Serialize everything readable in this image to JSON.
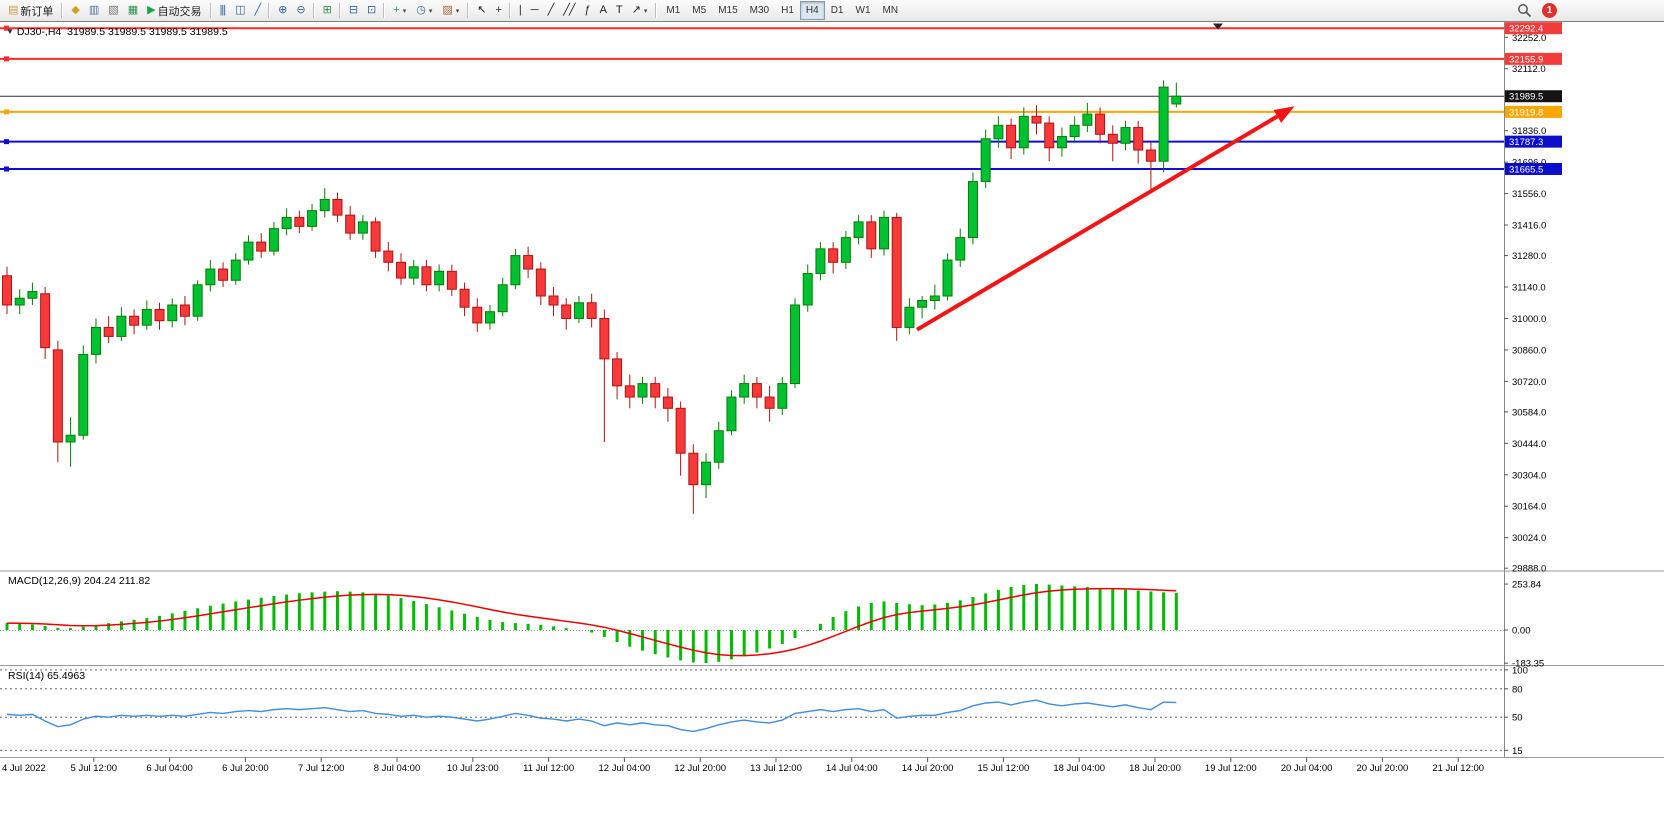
{
  "toolbar": {
    "notification_count": "1",
    "caret_glyph": "▾",
    "items": [
      {
        "name": "new-order-button",
        "label": "新订单",
        "icon": "new-order-icon",
        "glyph": "▤",
        "glyph_color": "#c89b3c"
      },
      {
        "sep": true
      },
      {
        "name": "market-watch-button",
        "icon": "market-watch-icon",
        "glyph": "◆",
        "glyph_color": "#d4a017"
      },
      {
        "name": "data-window-button",
        "icon": "data-window-icon",
        "glyph": "▥",
        "glyph_color": "#4a6fa5"
      },
      {
        "name": "navigator-button",
        "icon": "navigator-icon",
        "glyph": "▧",
        "glyph_color": "#767676"
      },
      {
        "name": "terminal-button",
        "icon": "terminal-icon",
        "glyph": "▦",
        "glyph_color": "#2f8f4e"
      },
      {
        "name": "auto-trading-button",
        "label": "自动交易",
        "icon": "auto-trading-play-icon",
        "glyph": "▶",
        "glyph_color": "#18a54a"
      },
      {
        "sep": true
      },
      {
        "name": "bar-chart-button",
        "icon": "bar-chart-icon",
        "glyph": "|||",
        "glyph_color": "#31639c"
      },
      {
        "name": "candlestick-chart-button",
        "icon": "candlestick-chart-icon",
        "glyph": "◫",
        "glyph_color": "#31639c"
      },
      {
        "name": "line-chart-button",
        "icon": "line-chart-icon",
        "glyph": "╱",
        "glyph_color": "#31639c"
      },
      {
        "sep": true
      },
      {
        "name": "zoom-in-button",
        "icon": "zoom-in-icon",
        "glyph": "⊕",
        "glyph_color": "#31639c"
      },
      {
        "name": "zoom-out-button",
        "icon": "zoom-out-icon",
        "glyph": "⊖",
        "glyph_color": "#31639c"
      },
      {
        "sep": true
      },
      {
        "name": "tile-windows-button",
        "icon": "tile-windows-icon",
        "glyph": "⊞",
        "glyph_color": "#2f8f4e"
      },
      {
        "sep": true
      },
      {
        "name": "arrange-windows-button",
        "icon": "arrange-windows-icon",
        "glyph": "⊟",
        "glyph_color": "#31639c"
      },
      {
        "name": "cascade-windows-button",
        "icon": "cascade-windows-icon",
        "glyph": "⊡",
        "glyph_color": "#31639c"
      },
      {
        "sep": true
      },
      {
        "name": "add-indicator-button",
        "icon": "add-indicator-icon",
        "glyph": "+",
        "glyph_color": "#18a54a",
        "caret": true
      },
      {
        "name": "periods-button",
        "icon": "clock-icon",
        "glyph": "◷",
        "glyph_color": "#31639c",
        "caret": true
      },
      {
        "name": "templates-button",
        "icon": "chart-template-icon",
        "glyph": "▨",
        "glyph_color": "#a9622d",
        "caret": true
      },
      {
        "sep": true
      },
      {
        "name": "cursor-tool-button",
        "icon": "cursor-icon",
        "glyph": "↖",
        "glyph_color": "#222222"
      },
      {
        "name": "crosshair-tool-button",
        "icon": "crosshair-icon",
        "glyph": "+",
        "glyph_color": "#222222"
      },
      {
        "sep": true
      },
      {
        "name": "vertical-line-tool-button",
        "icon": "vertical-line-icon",
        "glyph": "|",
        "glyph_color": "#222222"
      },
      {
        "name": "horizontal-line-tool-button",
        "icon": "horizontal-line-icon",
        "glyph": "─",
        "glyph_color": "#222222"
      },
      {
        "name": "trendline-tool-button",
        "icon": "trendline-icon",
        "glyph": "╱",
        "glyph_color": "#222222"
      },
      {
        "name": "channel-tool-button",
        "icon": "equidistant-channel-icon",
        "glyph": "╱╱",
        "glyph_color": "#222222"
      },
      {
        "name": "fibonacci-tool-button",
        "icon": "fibonacci-icon",
        "glyph": "ƒ",
        "glyph_color": "#222222"
      },
      {
        "name": "text-tool-button",
        "icon": "text-icon",
        "glyph": "A",
        "glyph_color": "#222222"
      },
      {
        "name": "label-tool-button",
        "icon": "text-label-icon",
        "glyph": "T",
        "glyph_color": "#222222"
      },
      {
        "name": "arrows-tool-button",
        "icon": "arrow-objects-icon",
        "glyph": "↗",
        "glyph_color": "#222222",
        "caret": true
      },
      {
        "sep": true
      },
      {
        "name": "timeframe-m1-button",
        "label": "M1",
        "tf": true
      },
      {
        "name": "timeframe-m5-button",
        "label": "M5",
        "tf": true
      },
      {
        "name": "timeframe-m15-button",
        "label": "M15",
        "tf": true
      },
      {
        "name": "timeframe-m30-button",
        "label": "M30",
        "tf": true
      },
      {
        "name": "timeframe-h1-button",
        "label": "H1",
        "tf": true
      },
      {
        "name": "timeframe-h4-button",
        "label": "H4",
        "tf": true,
        "active": true
      },
      {
        "name": "timeframe-d1-button",
        "label": "D1",
        "tf": true
      },
      {
        "name": "timeframe-w1-button",
        "label": "W1",
        "tf": true
      },
      {
        "name": "timeframe-mn-button",
        "label": "MN",
        "tf": true
      }
    ]
  },
  "chart": {
    "title_text": "DJ30-,H4  31989.5 31989.5 31989.5 31989.5",
    "collapse_glyph": "▼"
  },
  "chart_data": {
    "type": "candlestick",
    "symbol": "DJ30-",
    "period": "H4",
    "ohlc_display": [
      "31989.5",
      "31989.5",
      "31989.5",
      "31989.5"
    ],
    "colors": {
      "up": "#00c131",
      "up_border": "#067d06",
      "down": "#f63a3a",
      "down_border": "#b01212",
      "macd_hist": "#00bb00",
      "macd_signal": "#ee0000",
      "rsi_line": "#3e8ede"
    },
    "y_axis": {
      "ticks": [
        "32252.0",
        "32112.0",
        "31836.0",
        "31696.0",
        "31556.0",
        "31416.0",
        "31280.0",
        "31140.0",
        "31000.0",
        "30860.0",
        "30720.0",
        "30584.0",
        "30444.0",
        "30304.0",
        "30164.0",
        "30024.0",
        "29888.0"
      ],
      "range": [
        29880,
        32320
      ]
    },
    "x_labels": [
      "4 Jul 2022",
      "5 Jul 12:00",
      "6 Jul 04:00",
      "6 Jul 20:00",
      "7 Jul 12:00",
      "8 Jul 04:00",
      "10 Jul 23:00",
      "11 Jul 12:00",
      "12 Jul 04:00",
      "12 Jul 20:00",
      "13 Jul 12:00",
      "14 Jul 04:00",
      "14 Jul 20:00",
      "15 Jul 12:00",
      "18 Jul 04:00",
      "18 Jul 20:00",
      "19 Jul 12:00",
      "20 Jul 04:00",
      "20 Jul 20:00",
      "21 Jul 12:00"
    ],
    "hlines": [
      {
        "value": "32292.4",
        "color": "#ff2a2a",
        "width": 2,
        "box": "#f23b3b"
      },
      {
        "value": "32155.9",
        "color": "#ff2a2a",
        "width": 2,
        "box": "#f23b3b"
      },
      {
        "value": "31919.8",
        "color": "#f9a602",
        "width": 2,
        "box": "#f9a602"
      },
      {
        "value": "31787.3",
        "color": "#0d0dd6",
        "width": 2,
        "box": "#0d0dcc"
      },
      {
        "value": "31665.5",
        "color": "#0d0dd6",
        "width": 2,
        "box": "#0d0dcc"
      }
    ],
    "current_price": {
      "value": "31989.5",
      "line_color": "#333333",
      "box": "#141414"
    },
    "annotations": [
      {
        "type": "trend-arrow",
        "color": "#f21515",
        "width": 4,
        "from": {
          "index": 71.6,
          "price": 30950
        },
        "to": {
          "index": 101.3,
          "price": 31945
        }
      }
    ],
    "candles": [
      [
        31190,
        31230,
        31020,
        31060
      ],
      [
        31060,
        31130,
        31020,
        31090
      ],
      [
        31090,
        31160,
        31060,
        31120
      ],
      [
        31110,
        31140,
        30820,
        30870
      ],
      [
        30860,
        30900,
        30360,
        30450
      ],
      [
        30450,
        30560,
        30340,
        30480
      ],
      [
        30480,
        30880,
        30460,
        30840
      ],
      [
        30840,
        31000,
        30800,
        30960
      ],
      [
        30960,
        31010,
        30890,
        30920
      ],
      [
        30920,
        31050,
        30900,
        31010
      ],
      [
        31010,
        31040,
        30930,
        30970
      ],
      [
        30970,
        31080,
        30950,
        31040
      ],
      [
        31040,
        31070,
        30950,
        30990
      ],
      [
        30990,
        31090,
        30960,
        31060
      ],
      [
        31060,
        31100,
        30970,
        31010
      ],
      [
        31010,
        31170,
        30990,
        31150
      ],
      [
        31150,
        31260,
        31120,
        31220
      ],
      [
        31220,
        31250,
        31140,
        31170
      ],
      [
        31170,
        31290,
        31150,
        31260
      ],
      [
        31260,
        31370,
        31240,
        31340
      ],
      [
        31340,
        31380,
        31270,
        31300
      ],
      [
        31300,
        31430,
        31280,
        31400
      ],
      [
        31400,
        31490,
        31370,
        31450
      ],
      [
        31450,
        31480,
        31380,
        31410
      ],
      [
        31410,
        31510,
        31390,
        31480
      ],
      [
        31480,
        31580,
        31450,
        31530
      ],
      [
        31530,
        31560,
        31430,
        31460
      ],
      [
        31460,
        31500,
        31350,
        31380
      ],
      [
        31380,
        31460,
        31350,
        31430
      ],
      [
        31430,
        31450,
        31270,
        31300
      ],
      [
        31300,
        31340,
        31210,
        31250
      ],
      [
        31250,
        31290,
        31150,
        31180
      ],
      [
        31180,
        31260,
        31150,
        31230
      ],
      [
        31230,
        31260,
        31120,
        31150
      ],
      [
        31150,
        31240,
        31120,
        31210
      ],
      [
        31210,
        31240,
        31100,
        31130
      ],
      [
        31130,
        31160,
        31010,
        31050
      ],
      [
        31050,
        31090,
        30940,
        30980
      ],
      [
        30980,
        31060,
        30950,
        31030
      ],
      [
        31030,
        31180,
        31010,
        31150
      ],
      [
        31150,
        31310,
        31130,
        31280
      ],
      [
        31280,
        31320,
        31180,
        31220
      ],
      [
        31220,
        31250,
        31060,
        31100
      ],
      [
        31100,
        31140,
        31010,
        31060
      ],
      [
        31060,
        31090,
        30950,
        31000
      ],
      [
        31000,
        31100,
        30980,
        31070
      ],
      [
        31070,
        31110,
        30960,
        31000
      ],
      [
        31000,
        31040,
        30450,
        30820
      ],
      [
        30820,
        30850,
        30640,
        30700
      ],
      [
        30700,
        30750,
        30600,
        30650
      ],
      [
        30650,
        30740,
        30620,
        30710
      ],
      [
        30710,
        30740,
        30600,
        30650
      ],
      [
        30650,
        30690,
        30540,
        30600
      ],
      [
        30600,
        30630,
        30300,
        30400
      ],
      [
        30400,
        30440,
        30130,
        30260
      ],
      [
        30260,
        30400,
        30200,
        30360
      ],
      [
        30360,
        30540,
        30330,
        30500
      ],
      [
        30500,
        30680,
        30480,
        30650
      ],
      [
        30650,
        30750,
        30620,
        30710
      ],
      [
        30710,
        30740,
        30600,
        30650
      ],
      [
        30650,
        30700,
        30540,
        30600
      ],
      [
        30600,
        30740,
        30570,
        30710
      ],
      [
        30710,
        31090,
        30690,
        31060
      ],
      [
        31060,
        31240,
        31030,
        31200
      ],
      [
        31200,
        31340,
        31170,
        31310
      ],
      [
        31310,
        31340,
        31200,
        31250
      ],
      [
        31250,
        31390,
        31220,
        31360
      ],
      [
        31360,
        31460,
        31330,
        31430
      ],
      [
        31430,
        31460,
        31270,
        31310
      ],
      [
        31310,
        31480,
        31280,
        31450
      ],
      [
        31450,
        31470,
        30900,
        30960
      ],
      [
        30960,
        31090,
        30930,
        31050
      ],
      [
        31050,
        31100,
        31000,
        31080
      ],
      [
        31080,
        31150,
        31040,
        31100
      ],
      [
        31100,
        31290,
        31080,
        31260
      ],
      [
        31260,
        31400,
        31230,
        31360
      ],
      [
        31360,
        31650,
        31330,
        31610
      ],
      [
        31610,
        31840,
        31580,
        31800
      ],
      [
        31800,
        31900,
        31760,
        31860
      ],
      [
        31860,
        31890,
        31710,
        31760
      ],
      [
        31760,
        31940,
        31730,
        31900
      ],
      [
        31900,
        31950,
        31820,
        31870
      ],
      [
        31870,
        31900,
        31700,
        31760
      ],
      [
        31760,
        31850,
        31720,
        31810
      ],
      [
        31810,
        31900,
        31780,
        31860
      ],
      [
        31860,
        31960,
        31830,
        31910
      ],
      [
        31910,
        31940,
        31780,
        31820
      ],
      [
        31820,
        31860,
        31700,
        31780
      ],
      [
        31780,
        31880,
        31750,
        31850
      ],
      [
        31850,
        31880,
        31690,
        31750
      ],
      [
        31750,
        31790,
        31560,
        31700
      ],
      [
        31700,
        32060,
        31650,
        32030
      ],
      [
        31955,
        32050,
        31940,
        31989.5
      ]
    ],
    "indicators": {
      "macd": {
        "label_text": "MACD(12,26,9) 204.24 211.82",
        "axis_ticks": [
          "253.84",
          "0.00",
          "-183.35"
        ],
        "signal_period": 9,
        "histogram": [
          38,
          34,
          30,
          22,
          12,
          10,
          18,
          28,
          38,
          48,
          56,
          66,
          78,
          92,
          106,
          120,
          134,
          146,
          158,
          168,
          178,
          188,
          196,
          203,
          208,
          212,
          214,
          212,
          208,
          200,
          190,
          176,
          160,
          143,
          126,
          108,
          90,
          72,
          56,
          44,
          38,
          34,
          28,
          20,
          10,
          0,
          -14,
          -38,
          -66,
          -92,
          -114,
          -134,
          -152,
          -168,
          -179,
          -183,
          -176,
          -162,
          -144,
          -124,
          -102,
          -78,
          -44,
          -6,
          34,
          72,
          104,
          130,
          150,
          158,
          150,
          142,
          137,
          141,
          150,
          164,
          182,
          202,
          222,
          238,
          249,
          253.84,
          251,
          246,
          241,
          237,
          232,
          228,
          223,
          218,
          213,
          208,
          204.24
        ]
      },
      "rsi": {
        "label_text": "RSI(14) 65.4963",
        "levels": [
          "100",
          "80",
          "50",
          "15"
        ],
        "values": [
          53,
          52,
          53,
          46,
          40,
          42,
          48,
          51,
          50,
          52,
          51,
          52,
          51,
          52,
          51,
          53,
          55,
          54,
          56,
          57,
          56,
          58,
          59,
          58,
          59,
          60,
          58,
          56,
          57,
          54,
          53,
          51,
          52,
          50,
          51,
          50,
          48,
          46,
          48,
          51,
          54,
          52,
          49,
          48,
          46,
          48,
          46,
          41,
          44,
          42,
          44,
          42,
          41,
          37,
          35,
          38,
          42,
          45,
          47,
          45,
          44,
          47,
          54,
          56,
          58,
          56,
          58,
          59,
          56,
          58,
          49,
          51,
          52,
          52,
          55,
          57,
          62,
          65,
          66,
          63,
          66,
          68,
          64,
          62,
          64,
          65,
          63,
          61,
          63,
          60,
          58,
          66,
          65.4963
        ]
      }
    }
  }
}
